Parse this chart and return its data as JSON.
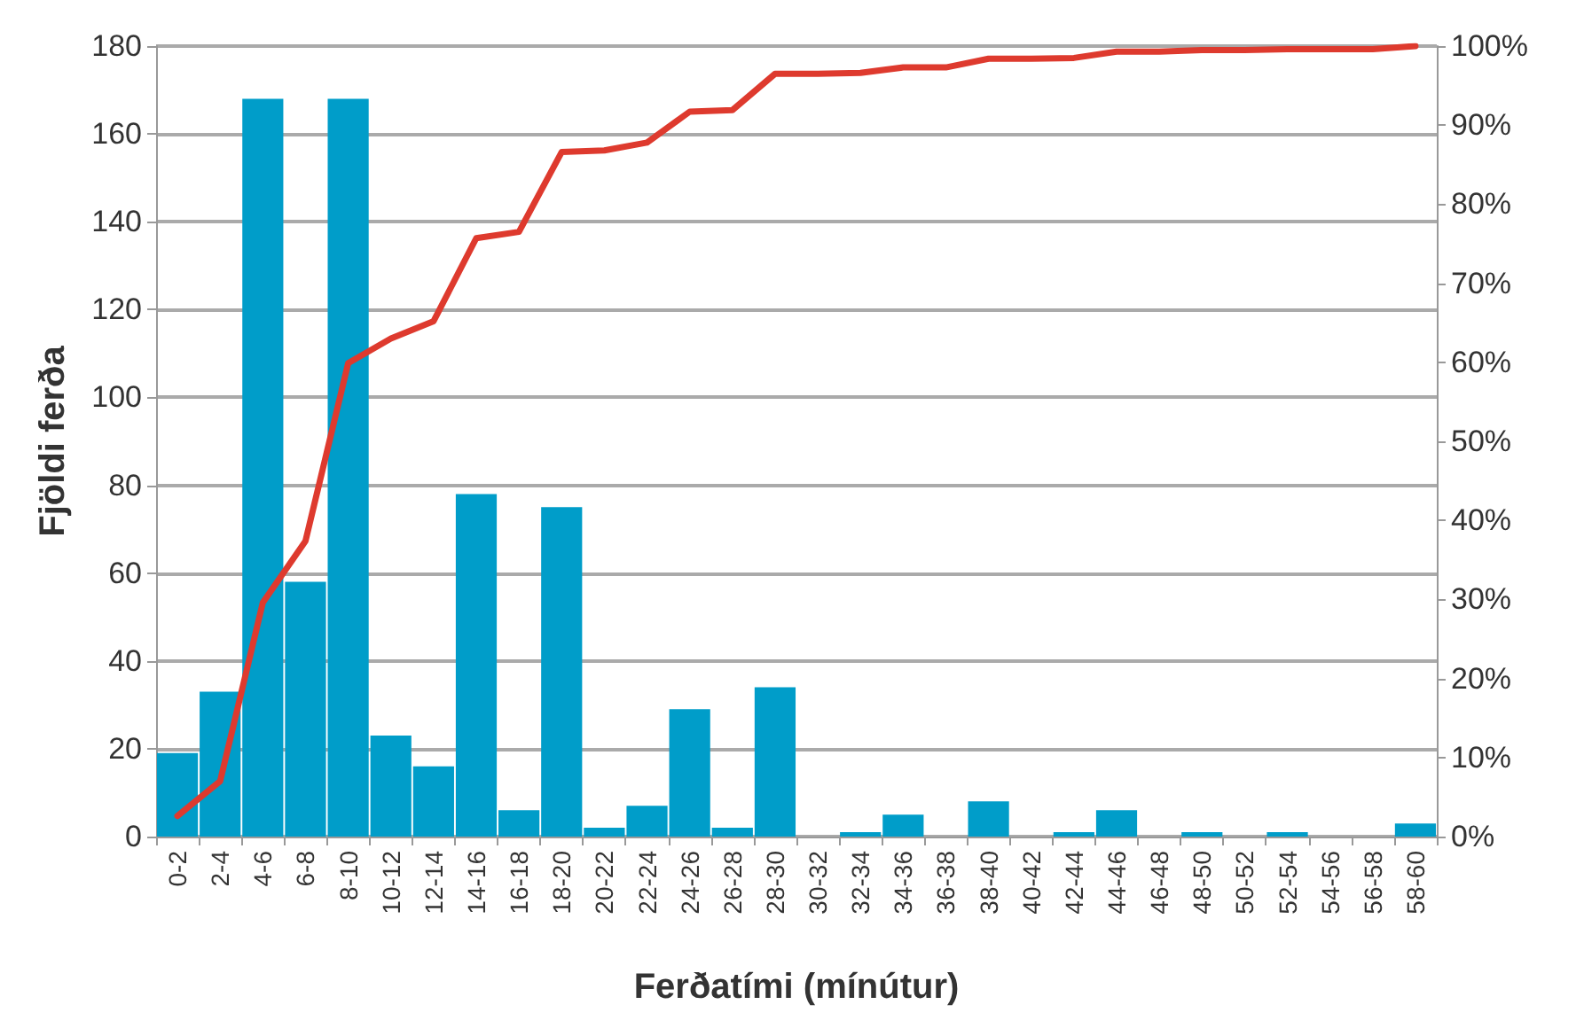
{
  "chart_data": {
    "type": "bar",
    "xlabel": "Ferðatími (mínútur)",
    "ylabel": "Fjöldi ferða",
    "categories": [
      "0-2",
      "2-4",
      "4-6",
      "6-8",
      "8-10",
      "10-12",
      "12-14",
      "14-16",
      "16-18",
      "18-20",
      "20-22",
      "22-24",
      "24-26",
      "26-28",
      "28-30",
      "30-32",
      "32-34",
      "34-36",
      "36-38",
      "38-40",
      "40-42",
      "42-44",
      "44-46",
      "46-48",
      "48-50",
      "50-52",
      "52-54",
      "54-56",
      "56-58",
      "58-60"
    ],
    "series": [
      {
        "color": "#009dc9",
        "values": [
          19,
          33,
          168,
          58,
          168,
          23,
          16,
          78,
          6,
          75,
          2,
          7,
          29,
          2,
          34,
          0,
          1,
          5,
          0,
          8,
          0,
          1,
          6,
          0,
          1,
          0,
          1,
          0,
          0,
          3
        ]
      },
      {
        "type": "line",
        "axis": "y2",
        "color": "#de3a2e",
        "values": [
          2.6,
          7.0,
          29.6,
          37.4,
          59.9,
          63.0,
          65.2,
          75.7,
          76.5,
          86.6,
          86.8,
          87.8,
          91.7,
          91.9,
          96.5,
          96.5,
          96.6,
          97.3,
          97.3,
          98.4,
          98.4,
          98.5,
          99.3,
          99.3,
          99.5,
          99.5,
          99.6,
          99.6,
          99.6,
          100
        ]
      }
    ],
    "ylim": [
      0,
      180
    ],
    "yticks": [
      0,
      20,
      40,
      60,
      80,
      100,
      120,
      140,
      160,
      180
    ],
    "y2lim": [
      0,
      100
    ],
    "y2ticks": [
      {
        "value": 0,
        "label": "0%"
      },
      {
        "value": 10,
        "label": "10%"
      },
      {
        "value": 20,
        "label": "20%"
      },
      {
        "value": 30,
        "label": "30%"
      },
      {
        "value": 40,
        "label": "40%"
      },
      {
        "value": 50,
        "label": "50%"
      },
      {
        "value": 60,
        "label": "60%"
      },
      {
        "value": 70,
        "label": "70%"
      },
      {
        "value": 80,
        "label": "80%"
      },
      {
        "value": 90,
        "label": "90%"
      },
      {
        "value": 100,
        "label": "100%"
      }
    ],
    "grid": "y",
    "marker": "none"
  }
}
